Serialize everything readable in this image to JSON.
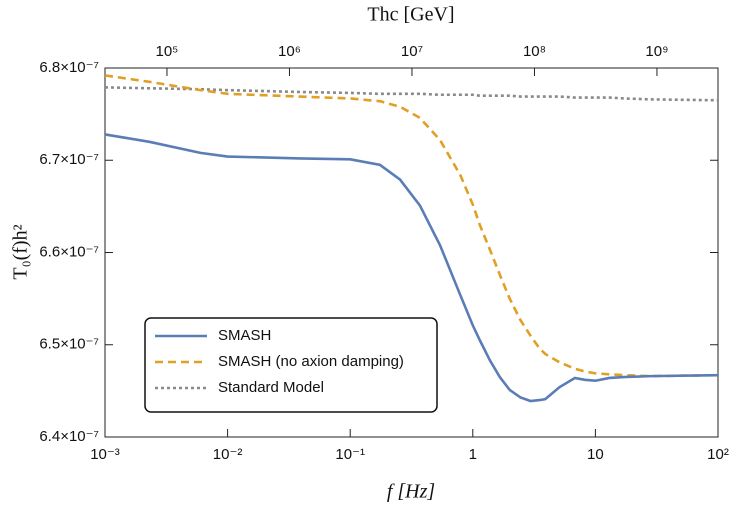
{
  "chart_data": {
    "type": "line",
    "x_label": "f [Hz]",
    "y_label": "T₀(f)h²",
    "x2_label": "Thc [GeV]",
    "x": [
      0.001,
      0.0023,
      0.006,
      0.01,
      0.039,
      0.1,
      0.175,
      0.255,
      0.37,
      0.54,
      0.79,
      1,
      1.14,
      1.38,
      1.66,
      2,
      2.44,
      2.95,
      3.5,
      3.9,
      5.1,
      6.8,
      8.2,
      10,
      13,
      17,
      28,
      100
    ],
    "series": [
      {
        "name": "SMASH",
        "color": "#5a7db6",
        "dash": "solid",
        "values": [
          6.728e-07,
          6.72e-07,
          6.708e-07,
          6.704e-07,
          6.702e-07,
          6.701e-07,
          6.695e-07,
          6.679e-07,
          6.651e-07,
          6.608e-07,
          6.554e-07,
          6.521e-07,
          6.505e-07,
          6.483e-07,
          6.465e-07,
          6.451e-07,
          6.443e-07,
          6.439e-07,
          6.44e-07,
          6.441e-07,
          6.454e-07,
          6.464e-07,
          6.462e-07,
          6.461e-07,
          6.464e-07,
          6.465e-07,
          6.466e-07,
          6.467e-07
        ]
      },
      {
        "name": "SMASH (no axion damping)",
        "color": "#e0a023",
        "dash": "dashed",
        "values": [
          6.792e-07,
          6.785e-07,
          6.776e-07,
          6.772e-07,
          6.769e-07,
          6.767e-07,
          6.764e-07,
          6.758e-07,
          6.746e-07,
          6.722e-07,
          6.684e-07,
          6.652e-07,
          6.63e-07,
          6.603e-07,
          6.576e-07,
          6.55e-07,
          6.527e-07,
          6.51e-07,
          6.496e-07,
          6.49e-07,
          6.481e-07,
          6.474e-07,
          6.471e-07,
          6.469e-07,
          6.468e-07,
          6.467e-07,
          6.466e-07,
          6.467e-07
        ]
      },
      {
        "name": "Standard Model",
        "color": "#8a8a8a",
        "dash": "dotted",
        "values": [
          6.779e-07,
          6.778e-07,
          6.777e-07,
          6.776e-07,
          6.774e-07,
          6.773e-07,
          6.772e-07,
          6.772e-07,
          6.772e-07,
          6.771e-07,
          6.771e-07,
          6.771e-07,
          6.77e-07,
          6.77e-07,
          6.77e-07,
          6.77e-07,
          6.769e-07,
          6.769e-07,
          6.769e-07,
          6.769e-07,
          6.769e-07,
          6.768e-07,
          6.768e-07,
          6.768e-07,
          6.768e-07,
          6.767e-07,
          6.766e-07,
          6.765e-07
        ]
      }
    ],
    "xscale": "log",
    "xlim": [
      0.001,
      100
    ],
    "xticks": [
      {
        "value": 0.001,
        "label": "10⁻³"
      },
      {
        "value": 0.01,
        "label": "10⁻²"
      },
      {
        "value": 0.1,
        "label": "10⁻¹"
      },
      1,
      10,
      {
        "value": 100,
        "label": "10²"
      }
    ],
    "x2lim": [
      31200,
      3150000000
    ],
    "x2ticks": [
      {
        "value": 100000,
        "label": "10⁵"
      },
      {
        "value": 1000000,
        "label": "10⁶"
      },
      {
        "value": 10000000,
        "label": "10⁷"
      },
      {
        "value": 100000000,
        "label": "10⁸"
      },
      {
        "value": 1000000000,
        "label": "10⁹"
      }
    ],
    "ylim": [
      6.4e-07,
      6.8e-07
    ],
    "yticks": [
      {
        "value": 6.4e-07,
        "label": "6.4×10⁻⁷"
      },
      {
        "value": 6.5e-07,
        "label": "6.5×10⁻⁷"
      },
      {
        "value": 6.6e-07,
        "label": "6.6×10⁻⁷"
      },
      {
        "value": 6.7e-07,
        "label": "6.7×10⁻⁷"
      },
      {
        "value": 6.8e-07,
        "label": "6.8×10⁻⁷"
      }
    ],
    "legend": "lower left",
    "grid": false
  }
}
